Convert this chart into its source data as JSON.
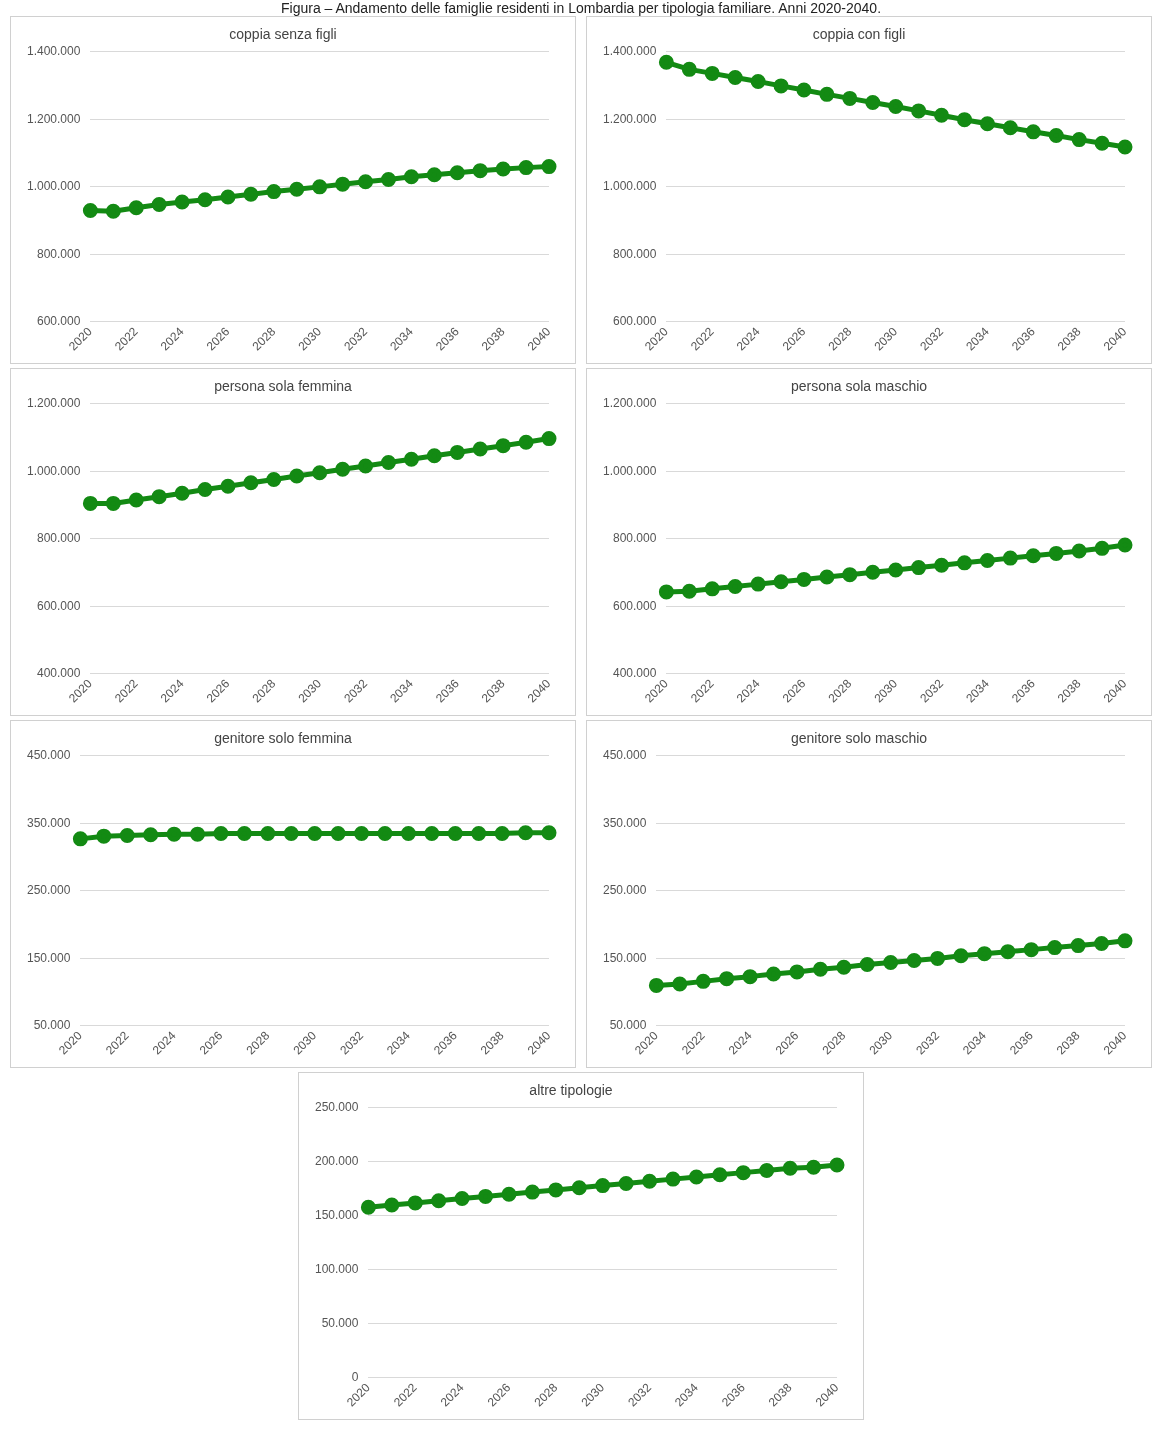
{
  "chart_data": [
    {
      "type": "line",
      "title": "coppia senza figli",
      "annotations": [
        "Figura – Andamento delle famiglie residenti in Lombardia per tipologia familiare. Anni 2020-2040."
      ],
      "categories": [
        "2020",
        null,
        "2022",
        null,
        "2024",
        null,
        "2026",
        null,
        "2028",
        null,
        "2030",
        null,
        "2032",
        null,
        "2034",
        null,
        "2036",
        null,
        "2038",
        null,
        "2040"
      ],
      "series": [
        {
          "color": "#138a13",
          "values": [
            930000,
            928000,
            938000,
            948000,
            955000,
            962000,
            970000,
            978000,
            986000,
            993000,
            1000000,
            1008000,
            1015000,
            1022000,
            1030000,
            1036000,
            1042000,
            1048000,
            1053000,
            1057000,
            1060000
          ]
        }
      ],
      "ylim": [
        600000,
        1400000
      ],
      "yticks": [
        {
          "value": 600000,
          "label": "600.000"
        },
        {
          "value": 800000,
          "label": "800.000"
        },
        {
          "value": 1000000,
          "label": "1.000.000"
        },
        {
          "value": 1200000,
          "label": "1.200.000"
        },
        {
          "value": 1400000,
          "label": "1.400.000"
        }
      ],
      "grid": "y",
      "marker": "circle"
    },
    {
      "type": "line",
      "title": "coppia con figli",
      "categories": [
        "2020",
        null,
        "2022",
        null,
        "2024",
        null,
        "2026",
        null,
        "2028",
        null,
        "2030",
        null,
        "2032",
        null,
        "2034",
        null,
        "2036",
        null,
        "2038",
        null,
        "2040"
      ],
      "series": [
        {
          "color": "#138a13",
          "values": [
            1369000,
            1348000,
            1336000,
            1324000,
            1312000,
            1299000,
            1287000,
            1274000,
            1262000,
            1250000,
            1238000,
            1225000,
            1212000,
            1199000,
            1187000,
            1175000,
            1163000,
            1152000,
            1140000,
            1129000,
            1118000
          ]
        }
      ],
      "ylim": [
        600000,
        1400000
      ],
      "yticks": [
        {
          "value": 600000,
          "label": "600.000"
        },
        {
          "value": 800000,
          "label": "800.000"
        },
        {
          "value": 1000000,
          "label": "1.000.000"
        },
        {
          "value": 1200000,
          "label": "1.200.000"
        },
        {
          "value": 1400000,
          "label": "1.400.000"
        }
      ],
      "grid": "y",
      "marker": "circle"
    },
    {
      "type": "line",
      "title": "persona sola femmina",
      "categories": [
        "2020",
        null,
        "2022",
        null,
        "2024",
        null,
        "2026",
        null,
        "2028",
        null,
        "2030",
        null,
        "2032",
        null,
        "2034",
        null,
        "2036",
        null,
        "2038",
        null,
        "2040"
      ],
      "series": [
        {
          "color": "#138a13",
          "values": [
            905000,
            905000,
            915000,
            925000,
            935000,
            946000,
            956000,
            966000,
            976000,
            986000,
            996000,
            1006000,
            1016000,
            1026000,
            1036000,
            1046000,
            1056000,
            1066000,
            1076000,
            1086000,
            1097000
          ]
        }
      ],
      "ylim": [
        400000,
        1200000
      ],
      "yticks": [
        {
          "value": 400000,
          "label": "400.000"
        },
        {
          "value": 600000,
          "label": "600.000"
        },
        {
          "value": 800000,
          "label": "800.000"
        },
        {
          "value": 1000000,
          "label": "1.000.000"
        },
        {
          "value": 1200000,
          "label": "1.200.000"
        }
      ],
      "grid": "y",
      "marker": "circle"
    },
    {
      "type": "line",
      "title": "persona sola maschio",
      "categories": [
        "2020",
        null,
        "2022",
        null,
        "2024",
        null,
        "2026",
        null,
        "2028",
        null,
        "2030",
        null,
        "2032",
        null,
        "2034",
        null,
        "2036",
        null,
        "2038",
        null,
        "2040"
      ],
      "series": [
        {
          "color": "#138a13",
          "values": [
            643000,
            645000,
            652000,
            659000,
            666000,
            673000,
            680000,
            687000,
            694000,
            701000,
            708000,
            715000,
            722000,
            729000,
            736000,
            743000,
            750000,
            757000,
            764000,
            772000,
            782000
          ]
        }
      ],
      "ylim": [
        400000,
        1200000
      ],
      "yticks": [
        {
          "value": 400000,
          "label": "400.000"
        },
        {
          "value": 600000,
          "label": "600.000"
        },
        {
          "value": 800000,
          "label": "800.000"
        },
        {
          "value": 1000000,
          "label": "1.000.000"
        },
        {
          "value": 1200000,
          "label": "1.200.000"
        }
      ],
      "grid": "y",
      "marker": "circle"
    },
    {
      "type": "line",
      "title": "genitore solo femmina",
      "categories": [
        "2020",
        null,
        "2022",
        null,
        "2024",
        null,
        "2026",
        null,
        "2028",
        null,
        "2030",
        null,
        "2032",
        null,
        "2034",
        null,
        "2036",
        null,
        "2038",
        null,
        "2040"
      ],
      "series": [
        {
          "color": "#138a13",
          "values": [
            327000,
            331000,
            332000,
            333000,
            334000,
            334000,
            335000,
            335000,
            335000,
            335000,
            335000,
            335000,
            335000,
            335000,
            335000,
            335000,
            335000,
            335000,
            335000,
            336000,
            336000
          ]
        }
      ],
      "ylim": [
        50000,
        450000
      ],
      "yticks": [
        {
          "value": 50000,
          "label": "50.000"
        },
        {
          "value": 150000,
          "label": "150.000"
        },
        {
          "value": 250000,
          "label": "250.000"
        },
        {
          "value": 350000,
          "label": "350.000"
        },
        {
          "value": 450000,
          "label": "450.000"
        }
      ],
      "grid": "y",
      "marker": "circle"
    },
    {
      "type": "line",
      "title": "genitore solo maschio",
      "categories": [
        "2020",
        null,
        "2022",
        null,
        "2024",
        null,
        "2026",
        null,
        "2028",
        null,
        "2030",
        null,
        "2032",
        null,
        "2034",
        null,
        "2036",
        null,
        "2038",
        null,
        "2040"
      ],
      "series": [
        {
          "color": "#138a13",
          "values": [
            110000,
            112000,
            116000,
            120000,
            123000,
            127000,
            130000,
            134000,
            137000,
            141000,
            144000,
            147000,
            150000,
            154000,
            157000,
            160000,
            163000,
            166000,
            169000,
            172000,
            176000
          ]
        }
      ],
      "ylim": [
        50000,
        450000
      ],
      "yticks": [
        {
          "value": 50000,
          "label": "50.000"
        },
        {
          "value": 150000,
          "label": "150.000"
        },
        {
          "value": 250000,
          "label": "250.000"
        },
        {
          "value": 350000,
          "label": "350.000"
        },
        {
          "value": 450000,
          "label": "450.000"
        }
      ],
      "grid": "y",
      "marker": "circle"
    },
    {
      "type": "line",
      "title": "altre tipologie",
      "categories": [
        "2020",
        null,
        "2022",
        null,
        "2024",
        null,
        "2026",
        null,
        "2028",
        null,
        "2030",
        null,
        "2032",
        null,
        "2034",
        null,
        "2036",
        null,
        "2038",
        null,
        "2040"
      ],
      "series": [
        {
          "color": "#138a13",
          "values": [
            158000,
            160000,
            162000,
            164000,
            166000,
            168000,
            170000,
            172000,
            174000,
            176000,
            178000,
            180000,
            182000,
            184000,
            186000,
            188000,
            190000,
            192000,
            194000,
            195000,
            197000
          ]
        }
      ],
      "ylim": [
        0,
        250000
      ],
      "yticks": [
        0,
        {
          "value": 50000,
          "label": "50.000"
        },
        {
          "value": 100000,
          "label": "100.000"
        },
        {
          "value": 150000,
          "label": "150.000"
        },
        {
          "value": 200000,
          "label": "200.000"
        },
        {
          "value": 250000,
          "label": "250.000"
        }
      ],
      "grid": "y",
      "marker": "circle"
    }
  ]
}
